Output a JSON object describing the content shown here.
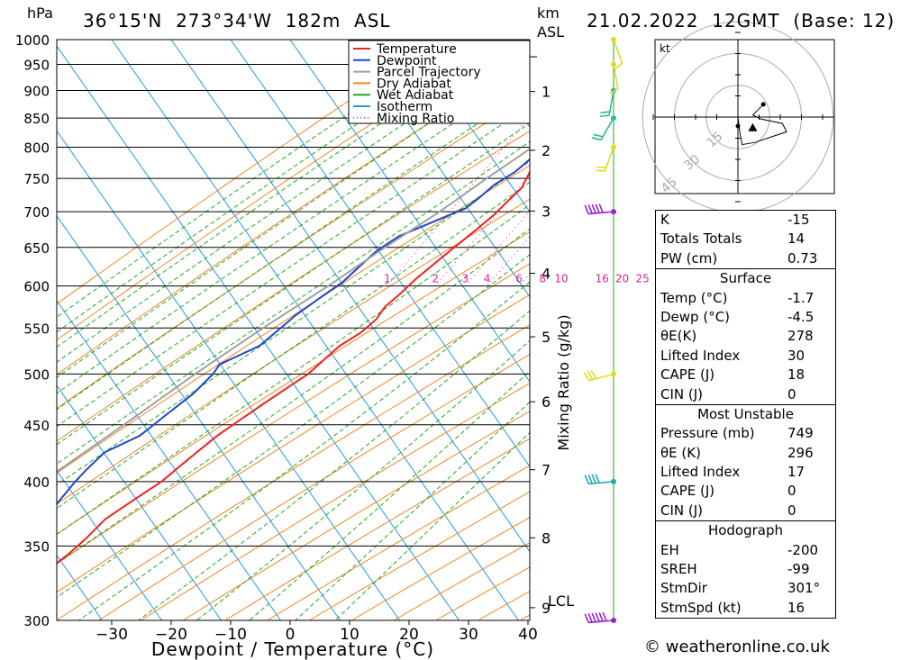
{
  "header": {
    "hpa_unit": "hPa",
    "location": "36°15'N  273°34'W  182m  ASL",
    "km_unit": "km",
    "asl_unit": "ASL",
    "datetime": "21.02.2022  12GMT  (Base: 12)"
  },
  "legend": [
    {
      "label": "Temperature",
      "color": "#ee2222",
      "style": "solid"
    },
    {
      "label": "Dewpoint",
      "color": "#2244cc",
      "style": "solid"
    },
    {
      "label": "Parcel Trajectory",
      "color": "#a0a0a0",
      "style": "solid"
    },
    {
      "label": "Dry Adiabat",
      "color": "#ee8822",
      "style": "solid"
    },
    {
      "label": "Wet Adiabat",
      "color": "#22aa22",
      "style": "solid"
    },
    {
      "label": "Isotherm",
      "color": "#2299dd",
      "style": "solid"
    },
    {
      "label": "Mixing Ratio",
      "color": "#dd2299",
      "style": "dotted"
    }
  ],
  "chart_data": {
    "type": "line",
    "title": "36°15'N  273°34'W  182m  ASL",
    "xlabel": "Dewpoint / Temperature (°C)",
    "ylabel": "hPa",
    "y2label": "Mixing Ratio (g/kg)",
    "xlim": [
      -40,
      40
    ],
    "ylim": [
      1000,
      300
    ],
    "x_ticks": [
      -30,
      -20,
      -10,
      0,
      10,
      20,
      30,
      40
    ],
    "y_ticks": [
      300,
      350,
      400,
      450,
      500,
      550,
      600,
      650,
      700,
      750,
      800,
      850,
      900,
      950,
      1000
    ],
    "km_ticks": [
      {
        "km": "1",
        "p": 898
      },
      {
        "km": "2",
        "p": 795
      },
      {
        "km": "3",
        "p": 701
      },
      {
        "km": "4",
        "p": 616
      },
      {
        "km": "5",
        "p": 540
      },
      {
        "km": "6",
        "p": 472
      },
      {
        "km": "7",
        "p": 410
      },
      {
        "km": "8",
        "p": 356
      },
      {
        "km": "9",
        "p": 308
      }
    ],
    "lcl_label": "LCL",
    "lcl_p": 965,
    "mixing_ratio_labels": [
      "1",
      "2",
      "3",
      "4",
      "6",
      "8",
      "10",
      "16",
      "20",
      "25"
    ],
    "series": [
      {
        "name": "Temperature",
        "color": "#ee2222",
        "points": [
          [
            -1.7,
            1000
          ],
          [
            -3,
            980
          ],
          [
            -4,
            950
          ],
          [
            -5,
            920
          ],
          [
            -6,
            900
          ],
          [
            -7,
            880
          ],
          [
            -8,
            860
          ],
          [
            -8.5,
            845
          ],
          [
            -10,
            820
          ],
          [
            -11,
            800
          ],
          [
            -12,
            780
          ],
          [
            -12.5,
            760
          ],
          [
            -12,
            735
          ],
          [
            -13,
            710
          ],
          [
            -13.5,
            695
          ],
          [
            -15,
            670
          ],
          [
            -17,
            640
          ],
          [
            -19,
            610
          ],
          [
            -20,
            590
          ],
          [
            -21,
            575
          ],
          [
            -21,
            560
          ],
          [
            -22,
            545
          ],
          [
            -24,
            530
          ],
          [
            -25,
            515
          ],
          [
            -26,
            500
          ],
          [
            -28,
            485
          ],
          [
            -30,
            470
          ],
          [
            -32,
            455
          ],
          [
            -34,
            440
          ],
          [
            -36,
            420
          ],
          [
            -38,
            400
          ],
          [
            -40.5,
            385
          ],
          [
            -43,
            370
          ],
          [
            -44,
            355
          ],
          [
            -45,
            345
          ],
          [
            -47,
            330
          ],
          [
            -49,
            315
          ],
          [
            -51,
            300
          ]
        ]
      },
      {
        "name": "Dewpoint",
        "color": "#2244cc",
        "points": [
          [
            -4.5,
            1000
          ],
          [
            -5.5,
            980
          ],
          [
            -6.5,
            950
          ],
          [
            -7.5,
            920
          ],
          [
            -9,
            895
          ],
          [
            -7,
            870
          ],
          [
            -8.5,
            855
          ],
          [
            -10.5,
            845
          ],
          [
            -10,
            820
          ],
          [
            -15,
            810
          ],
          [
            -12,
            800
          ],
          [
            -14,
            780
          ],
          [
            -15,
            760
          ],
          [
            -17,
            740
          ],
          [
            -18,
            720
          ],
          [
            -19,
            705
          ],
          [
            -22,
            690
          ],
          [
            -27,
            665
          ],
          [
            -29,
            645
          ],
          [
            -30,
            625
          ],
          [
            -31,
            605
          ],
          [
            -33,
            585
          ],
          [
            -35,
            565
          ],
          [
            -36,
            550
          ],
          [
            -37.5,
            530
          ],
          [
            -42,
            510
          ],
          [
            -42,
            500
          ],
          [
            -43,
            480
          ],
          [
            -45,
            460
          ],
          [
            -47,
            440
          ],
          [
            -51,
            425
          ],
          [
            -52,
            410
          ],
          [
            -52.5,
            400
          ],
          [
            -53,
            380
          ],
          [
            -54,
            365
          ],
          [
            -56,
            350
          ],
          [
            -57.5,
            340
          ],
          [
            -59,
            325
          ],
          [
            -60,
            310
          ],
          [
            -61,
            300
          ]
        ]
      },
      {
        "name": "Parcel Trajectory",
        "color": "#a0a0a0",
        "points": [
          [
            -1.7,
            1000
          ],
          [
            -4.2,
            965
          ],
          [
            -6.5,
            930
          ],
          [
            -9,
            890
          ],
          [
            -11.5,
            850
          ],
          [
            -15,
            800
          ],
          [
            -19,
            750
          ],
          [
            -23,
            700
          ],
          [
            -28,
            650
          ],
          [
            -33,
            600
          ],
          [
            -39,
            550
          ],
          [
            -45,
            500
          ],
          [
            -51,
            450
          ],
          [
            -58,
            400
          ],
          [
            -65,
            350
          ],
          [
            -72,
            300
          ]
        ]
      }
    ],
    "hodograph": {
      "units": "kt",
      "rings": [
        "15",
        "30",
        "45"
      ],
      "trace": [
        [
          0,
          0
        ],
        [
          1,
          -8
        ],
        [
          2,
          -13
        ],
        [
          8,
          -12
        ],
        [
          23,
          -7
        ],
        [
          21,
          -3
        ],
        [
          11,
          -1
        ],
        [
          7,
          1
        ],
        [
          11,
          5
        ],
        [
          12,
          6
        ]
      ],
      "storm_motion": [
        7,
        -5
      ]
    },
    "wind_profile": [
      {
        "p": 300,
        "dir": 265,
        "speed_kt": 55
      },
      {
        "p": 400,
        "dir": 265,
        "speed_kt": 35
      },
      {
        "p": 500,
        "dir": 255,
        "speed_kt": 25
      },
      {
        "p": 700,
        "dir": 265,
        "speed_kt": 50
      },
      {
        "p": 800,
        "dir": 200,
        "speed_kt": 20
      },
      {
        "p": 850,
        "dir": 210,
        "speed_kt": 15
      },
      {
        "p": 900,
        "dir": 190,
        "speed_kt": 15
      },
      {
        "p": 950,
        "dir": 170,
        "speed_kt": 10
      },
      {
        "p": 1000,
        "dir": 160,
        "speed_kt": 5
      }
    ]
  },
  "stats": {
    "general": [
      {
        "label": "K",
        "value": "-15"
      },
      {
        "label": "Totals Totals",
        "value": "14"
      },
      {
        "label": "PW (cm)",
        "value": "0.73"
      }
    ],
    "surface": {
      "title": "Surface",
      "rows": [
        {
          "label": "Temp (°C)",
          "value": "-1.7"
        },
        {
          "label": "Dewp (°C)",
          "value": "-4.5"
        },
        {
          "label": "θE(K)",
          "value": "278"
        },
        {
          "label": "Lifted Index",
          "value": "30"
        },
        {
          "label": "CAPE (J)",
          "value": "18"
        },
        {
          "label": "CIN (J)",
          "value": "0"
        }
      ]
    },
    "most_unstable": {
      "title": "Most Unstable",
      "rows": [
        {
          "label": "Pressure (mb)",
          "value": "749"
        },
        {
          "label": "θE (K)",
          "value": "296"
        },
        {
          "label": "Lifted Index",
          "value": "17"
        },
        {
          "label": "CAPE (J)",
          "value": "0"
        },
        {
          "label": "CIN (J)",
          "value": "0"
        }
      ]
    },
    "hodograph": {
      "title": "Hodograph",
      "rows": [
        {
          "label": "EH",
          "value": "-200"
        },
        {
          "label": "SREH",
          "value": "-99"
        },
        {
          "label": "StmDir",
          "value": "301°"
        },
        {
          "label": "StmSpd (kt)",
          "value": "16"
        }
      ]
    }
  },
  "footer": {
    "copyright": "© weatheronline.co.uk"
  }
}
